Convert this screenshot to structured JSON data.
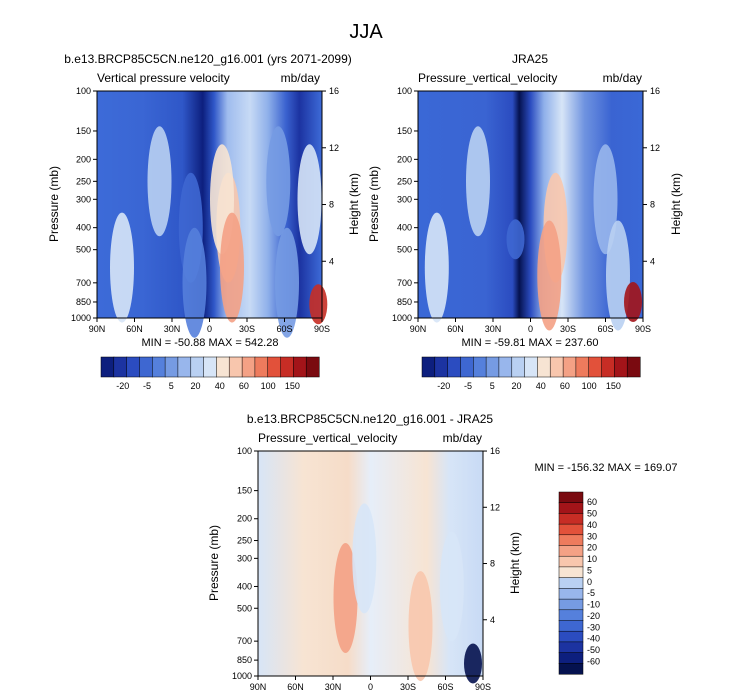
{
  "page_title": "JJA",
  "palette": {
    "pos": [
      "#f7e4d3",
      "#f8c6ad",
      "#f4a185",
      "#ee7b5d",
      "#e2513a",
      "#c72d25",
      "#a31419",
      "#7a0a10"
    ],
    "neg": [
      "#d7e5f7",
      "#b9d0f2",
      "#98b6ec",
      "#769be3",
      "#5580dc",
      "#3e67d1",
      "#2b4cc0",
      "#1c33a1",
      "#0d1f7e",
      "#05124f"
    ]
  },
  "chart_data": [
    {
      "type": "heatmap",
      "id": "model",
      "title": "b.e13.BRCP85C5CN.ne120_g16.001 (yrs 2071-2099)",
      "left_label": "Vertical pressure velocity",
      "right_label": "mb/day",
      "xlabel": "",
      "ylabel": "Pressure (mb)",
      "y2label": "Height (km)",
      "x_ticks": [
        "90N",
        "60N",
        "30N",
        "0",
        "30S",
        "60S",
        "90S"
      ],
      "y_ticks": [
        "100",
        "150",
        "200",
        "250",
        "300",
        "400",
        "500",
        "700",
        "850",
        "1000"
      ],
      "y2_ticks": [
        "16",
        "12",
        "8",
        "4"
      ],
      "stats": "MIN = -50.88  MAX = 542.28",
      "colorbar_labels": [
        "-20",
        "-5",
        "5",
        "20",
        "40",
        "60",
        "100",
        "150"
      ],
      "background_level": -12,
      "features": [
        {
          "lat": -15,
          "p": 400,
          "value": 8
        },
        {
          "lat": -10,
          "p": 300,
          "value": 2
        },
        {
          "lat": -18,
          "p": 600,
          "value": 12
        },
        {
          "lat": 15,
          "p": 400,
          "value": -30
        },
        {
          "lat": 12,
          "p": 700,
          "value": -26
        },
        {
          "lat": 40,
          "p": 250,
          "value": -14
        },
        {
          "lat": 70,
          "p": 600,
          "value": -8
        },
        {
          "lat": -55,
          "p": 250,
          "value": -22
        },
        {
          "lat": -62,
          "p": 700,
          "value": -20
        },
        {
          "lat": -80,
          "p": 300,
          "value": -8
        },
        {
          "lat": -87,
          "p": 870,
          "value": 40
        }
      ]
    },
    {
      "type": "heatmap",
      "id": "jra25",
      "title": "JRA25",
      "left_label": "Pressure_vertical_velocity",
      "right_label": "mb/day",
      "xlabel": "",
      "ylabel": "Pressure (mb)",
      "y2label": "Height (km)",
      "x_ticks": [
        "90N",
        "60N",
        "30N",
        "0",
        "30S",
        "60S",
        "90S"
      ],
      "y_ticks": [
        "100",
        "150",
        "200",
        "250",
        "300",
        "400",
        "500",
        "700",
        "850",
        "1000"
      ],
      "y2_ticks": [
        "16",
        "12",
        "8",
        "4"
      ],
      "stats": "MIN = -59.81  MAX = 237.60",
      "colorbar_labels": [
        "-20",
        "-5",
        "5",
        "20",
        "40",
        "60",
        "100",
        "150"
      ],
      "background_level": -12,
      "features": [
        {
          "lat": -20,
          "p": 400,
          "value": 6
        },
        {
          "lat": -15,
          "p": 650,
          "value": 10
        },
        {
          "lat": 12,
          "p": 450,
          "value": -34
        },
        {
          "lat": 42,
          "p": 250,
          "value": -14
        },
        {
          "lat": 75,
          "p": 600,
          "value": -8
        },
        {
          "lat": -60,
          "p": 300,
          "value": -16
        },
        {
          "lat": -70,
          "p": 650,
          "value": -12
        },
        {
          "lat": -82,
          "p": 850,
          "value": 90
        }
      ]
    },
    {
      "type": "heatmap",
      "id": "difference",
      "title": "b.e13.BRCP85C5CN.ne120_g16.001 - JRA25",
      "left_label": "Pressure_vertical_velocity",
      "right_label": "mb/day",
      "xlabel": "",
      "ylabel": "Pressure (mb)",
      "y2label": "Height (km)",
      "x_ticks": [
        "90N",
        "60N",
        "30N",
        "0",
        "30S",
        "60S",
        "90S"
      ],
      "y_ticks": [
        "100",
        "150",
        "200",
        "250",
        "300",
        "400",
        "500",
        "700",
        "850",
        "1000"
      ],
      "y2_ticks": [
        "16",
        "12",
        "8",
        "4"
      ],
      "stats": "MIN = -156.32  MAX = 169.07",
      "colorbar_labels": [
        "60",
        "50",
        "40",
        "30",
        "20",
        "10",
        "5",
        "0",
        "-5",
        "-10",
        "-20",
        "-30",
        "-40",
        "-50",
        "-60"
      ],
      "background_level": 1,
      "features": [
        {
          "lat": 20,
          "p": 450,
          "value": 14
        },
        {
          "lat": 5,
          "p": 300,
          "value": -6
        },
        {
          "lat": -40,
          "p": 600,
          "value": 8
        },
        {
          "lat": -65,
          "p": 400,
          "value": -3
        },
        {
          "lat": -82,
          "p": 880,
          "value": -55
        }
      ]
    }
  ]
}
